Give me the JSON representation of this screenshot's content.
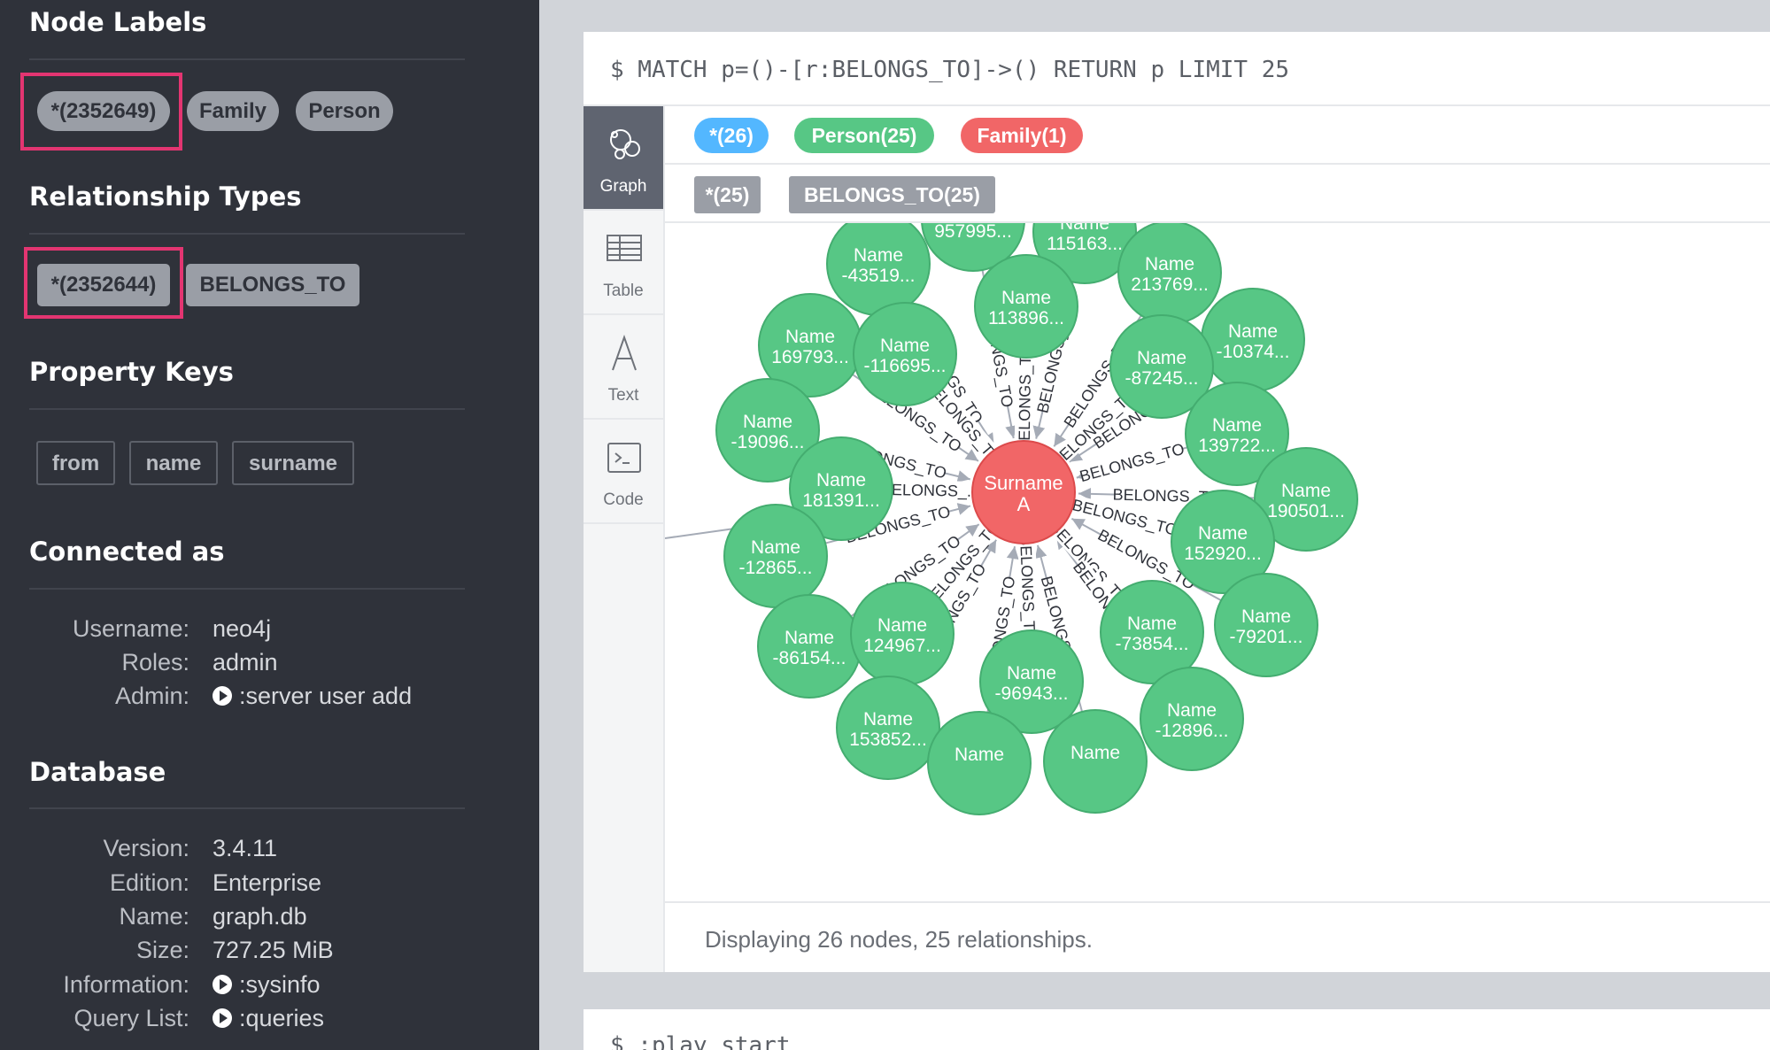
{
  "sidebar": {
    "node_labels": {
      "title": "Node Labels",
      "items": [
        "*(2352649)",
        "Family",
        "Person"
      ]
    },
    "relationship_types": {
      "title": "Relationship Types",
      "items": [
        "*(2352644)",
        "BELONGS_TO"
      ]
    },
    "property_keys": {
      "title": "Property Keys",
      "items": [
        "from",
        "name",
        "surname"
      ]
    },
    "connected_as": {
      "title": "Connected as",
      "rows": [
        {
          "key": "Username:",
          "value": "neo4j"
        },
        {
          "key": "Roles:",
          "value": "admin"
        },
        {
          "key": "Admin:",
          "value": ":server user add"
        }
      ]
    },
    "database": {
      "title": "Database",
      "rows": [
        {
          "key": "Version:",
          "value": "3.4.11"
        },
        {
          "key": "Edition:",
          "value": "Enterprise"
        },
        {
          "key": "Name:",
          "value": "graph.db"
        },
        {
          "key": "Size:",
          "value": "727.25 MiB"
        },
        {
          "key": "Information:",
          "value": ":sysinfo"
        },
        {
          "key": "Query List:",
          "value": ":queries"
        }
      ]
    }
  },
  "frame": {
    "query": "$ MATCH p=()-[r:BELONGS_TO]->() RETURN p LIMIT 25",
    "tabs": [
      "Graph",
      "Table",
      "Text",
      "Code"
    ],
    "legend_nodes": [
      "*(26)",
      "Person(25)",
      "Family(1)"
    ],
    "legend_rels": [
      "*(25)",
      "BELONGS_TO(25)"
    ],
    "status": "Displaying 26 nodes, 25 relationships."
  },
  "frame2": {
    "query": "$ :play start"
  },
  "graph": {
    "center": {
      "line1": "Surname",
      "line2": "A"
    },
    "relationship_label": "BELONGS_TO",
    "relationship_label_short": "BELONGS_...",
    "nodes": [
      {
        "line1": "Name",
        "line2": "957995..."
      },
      {
        "line1": "Name",
        "line2": "115163..."
      },
      {
        "line1": "Name",
        "line2": "-43519..."
      },
      {
        "line1": "Name",
        "line2": "213769..."
      },
      {
        "line1": "Name",
        "line2": "113896..."
      },
      {
        "line1": "Name",
        "line2": "169793..."
      },
      {
        "line1": "Name",
        "line2": "-116695..."
      },
      {
        "line1": "Name",
        "line2": "-10374..."
      },
      {
        "line1": "Name",
        "line2": "-87245..."
      },
      {
        "line1": "Name",
        "line2": "-19096..."
      },
      {
        "line1": "Name",
        "line2": "139722..."
      },
      {
        "line1": "Name",
        "line2": "181391..."
      },
      {
        "line1": "Name",
        "line2": "190501..."
      },
      {
        "line1": "Name",
        "line2": "-12865..."
      },
      {
        "line1": "Name",
        "line2": "152920..."
      },
      {
        "line1": "Name",
        "line2": "-79201..."
      },
      {
        "line1": "Name",
        "line2": "-86154..."
      },
      {
        "line1": "Name",
        "line2": "124967..."
      },
      {
        "line1": "Name",
        "line2": "-73854..."
      },
      {
        "line1": "Name",
        "line2": "-96943..."
      },
      {
        "line1": "Name",
        "line2": "153852..."
      },
      {
        "line1": "Name",
        "line2": "-12896..."
      },
      {
        "line1": "Name",
        "line2": ""
      },
      {
        "line1": "Name",
        "line2": ""
      }
    ]
  },
  "colors": {
    "sidebar_bg": "#2f323a",
    "highlight": "#e33571",
    "node_green": "#57c785",
    "node_green_stroke": "#44ad70",
    "node_red": "#f16667",
    "node_red_stroke": "#dc4a4b",
    "legend_all": "#53b7ff",
    "edge": "#a5abb6"
  }
}
